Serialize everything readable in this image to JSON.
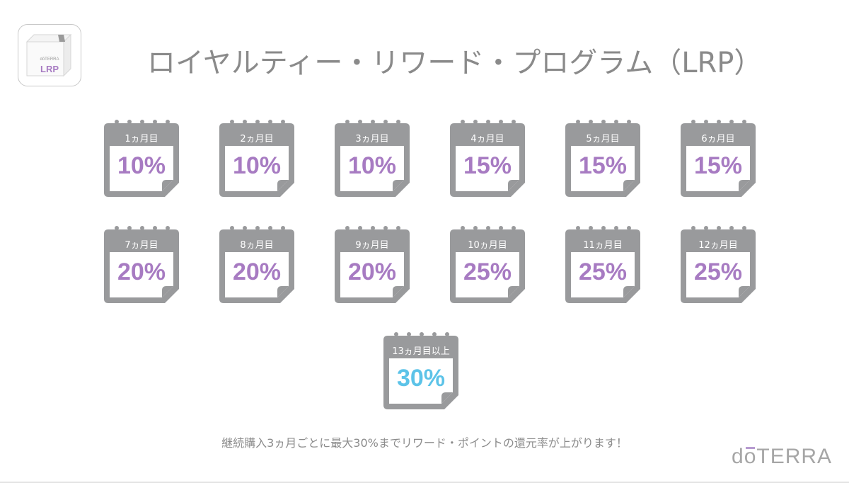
{
  "logo": {
    "brand": "dōTERRA",
    "label": "LRP"
  },
  "title": "ロイヤルティー・リワード・プログラム（LRP）",
  "colors": {
    "calendar_gray": "#999a9c",
    "purple": "#a77bc2",
    "blue": "#5cc3e8",
    "text_gray": "#8a8a8a"
  },
  "calendars": [
    {
      "label": "1ヵ月目",
      "value": "10%"
    },
    {
      "label": "2ヵ月目",
      "value": "10%"
    },
    {
      "label": "3ヵ月目",
      "value": "10%"
    },
    {
      "label": "4ヵ月目",
      "value": "15%"
    },
    {
      "label": "5ヵ月目",
      "value": "15%"
    },
    {
      "label": "6ヵ月目",
      "value": "15%"
    },
    {
      "label": "7ヵ月目",
      "value": "20%"
    },
    {
      "label": "8ヵ月目",
      "value": "20%"
    },
    {
      "label": "9ヵ月目",
      "value": "20%"
    },
    {
      "label": "10ヵ月目",
      "value": "25%"
    },
    {
      "label": "11ヵ月目",
      "value": "25%"
    },
    {
      "label": "12ヵ月目",
      "value": "25%"
    },
    {
      "label": "13ヵ月目以上",
      "value": "30%"
    }
  ],
  "caption": "継続購入3ヵ月ごとに最大30%までリワード・ポイントの還元率が上がります！",
  "brand": {
    "d": "d",
    "o": "o",
    "rest": "TERRA"
  }
}
